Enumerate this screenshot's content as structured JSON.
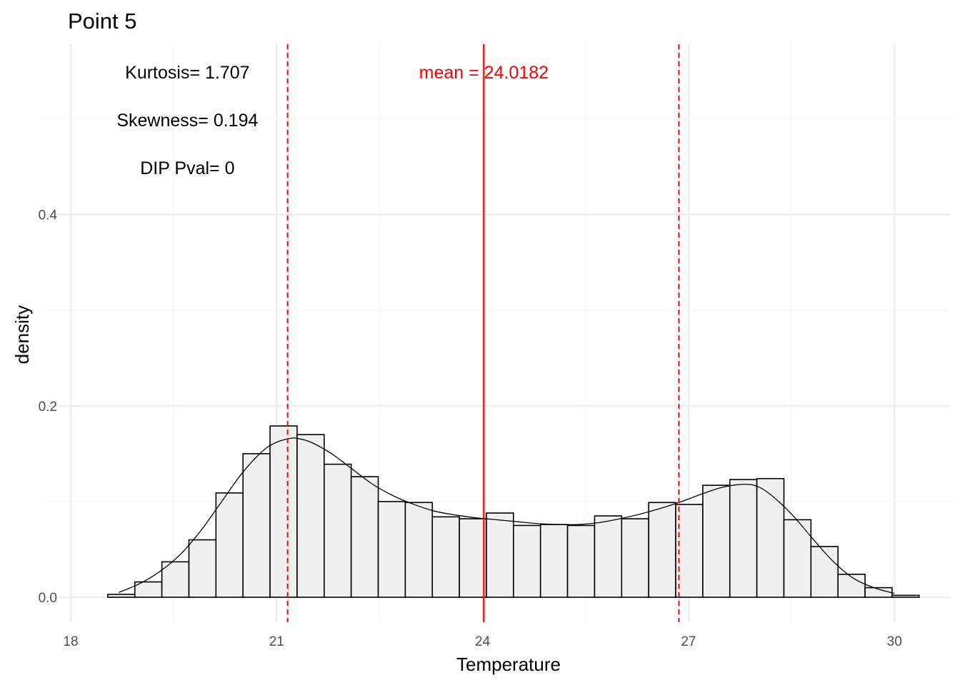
{
  "chart_data": {
    "type": "bar",
    "title": "Point 5",
    "xlabel": "Temperature",
    "ylabel": "density",
    "xlim": [
      18,
      30.3
    ],
    "ylim": [
      0,
      0.55
    ],
    "x_ticks": [
      18,
      21,
      24,
      27,
      30
    ],
    "x_tick_labels": [
      "18",
      "21",
      "24",
      "27",
      "30"
    ],
    "y_ticks": [
      0,
      0.2,
      0.4
    ],
    "y_tick_labels": [
      "0.0",
      "0.2",
      "0.4"
    ],
    "grid": true,
    "bin_width": 0.394,
    "bins": [
      {
        "x0": 18.54,
        "x1": 18.934,
        "density": 0.003
      },
      {
        "x0": 18.934,
        "x1": 19.328,
        "density": 0.016
      },
      {
        "x0": 19.328,
        "x1": 19.722,
        "density": 0.037
      },
      {
        "x0": 19.722,
        "x1": 20.116,
        "density": 0.06
      },
      {
        "x0": 20.116,
        "x1": 20.51,
        "density": 0.109
      },
      {
        "x0": 20.51,
        "x1": 20.904,
        "density": 0.15
      },
      {
        "x0": 20.904,
        "x1": 21.298,
        "density": 0.179
      },
      {
        "x0": 21.298,
        "x1": 21.692,
        "density": 0.17
      },
      {
        "x0": 21.692,
        "x1": 22.086,
        "density": 0.139
      },
      {
        "x0": 22.086,
        "x1": 22.48,
        "density": 0.126
      },
      {
        "x0": 22.48,
        "x1": 22.874,
        "density": 0.1
      },
      {
        "x0": 22.874,
        "x1": 23.268,
        "density": 0.099
      },
      {
        "x0": 23.268,
        "x1": 23.662,
        "density": 0.084
      },
      {
        "x0": 23.662,
        "x1": 24.056,
        "density": 0.082
      },
      {
        "x0": 24.056,
        "x1": 24.45,
        "density": 0.088
      },
      {
        "x0": 24.45,
        "x1": 24.844,
        "density": 0.075
      },
      {
        "x0": 24.844,
        "x1": 25.238,
        "density": 0.076
      },
      {
        "x0": 25.238,
        "x1": 25.632,
        "density": 0.075
      },
      {
        "x0": 25.632,
        "x1": 26.026,
        "density": 0.085
      },
      {
        "x0": 26.026,
        "x1": 26.42,
        "density": 0.082
      },
      {
        "x0": 26.42,
        "x1": 26.814,
        "density": 0.099
      },
      {
        "x0": 26.814,
        "x1": 27.208,
        "density": 0.097
      },
      {
        "x0": 27.208,
        "x1": 27.602,
        "density": 0.117
      },
      {
        "x0": 27.602,
        "x1": 27.996,
        "density": 0.123
      },
      {
        "x0": 27.996,
        "x1": 28.39,
        "density": 0.124
      },
      {
        "x0": 28.39,
        "x1": 28.784,
        "density": 0.081
      },
      {
        "x0": 28.784,
        "x1": 29.178,
        "density": 0.053
      },
      {
        "x0": 29.178,
        "x1": 29.572,
        "density": 0.024
      },
      {
        "x0": 29.572,
        "x1": 29.966,
        "density": 0.01
      },
      {
        "x0": 29.966,
        "x1": 30.36,
        "density": 0.002
      }
    ],
    "density_curve": {
      "x": [
        18.7,
        19.0,
        19.3,
        19.6,
        19.9,
        20.2,
        20.5,
        20.8,
        21.0,
        21.2,
        21.3,
        21.5,
        21.8,
        22.1,
        22.4,
        22.7,
        23.0,
        23.3,
        23.6,
        23.9,
        24.2,
        24.5,
        24.8,
        25.1,
        25.4,
        25.7,
        26.0,
        26.3,
        26.6,
        26.9,
        27.2,
        27.5,
        27.8,
        28.0,
        28.2,
        28.5,
        28.8,
        29.1,
        29.4,
        29.7,
        30.0
      ],
      "y": [
        0.005,
        0.014,
        0.027,
        0.045,
        0.07,
        0.1,
        0.13,
        0.153,
        0.162,
        0.166,
        0.166,
        0.162,
        0.15,
        0.134,
        0.118,
        0.106,
        0.097,
        0.09,
        0.086,
        0.083,
        0.081,
        0.079,
        0.077,
        0.076,
        0.076,
        0.078,
        0.082,
        0.087,
        0.093,
        0.1,
        0.108,
        0.115,
        0.118,
        0.116,
        0.107,
        0.087,
        0.062,
        0.038,
        0.02,
        0.01,
        0.004
      ]
    },
    "vlines": [
      {
        "x": 21.16,
        "style": "dashed",
        "color": "#ff0000"
      },
      {
        "x": 24.0182,
        "style": "solid",
        "color": "#ff0000"
      },
      {
        "x": 26.86,
        "style": "dashed",
        "color": "#ff0000"
      }
    ],
    "annotations": [
      {
        "text": "Kurtosis= 1.707",
        "x": 19.7,
        "y": 0.549,
        "color": "#000000"
      },
      {
        "text": "Skewness= 0.194",
        "x": 19.7,
        "y": 0.499,
        "color": "#000000"
      },
      {
        "text": "DIP Pval= 0",
        "x": 19.7,
        "y": 0.449,
        "color": "#000000"
      },
      {
        "text": "mean = 24.0182",
        "x": 24.0182,
        "y": 0.549,
        "color": "#ff0000"
      }
    ],
    "colors": {
      "bar_fill": "#f0f0f0",
      "bar_outline": "#000000",
      "line": "#ff0000",
      "density": "#000000"
    }
  }
}
